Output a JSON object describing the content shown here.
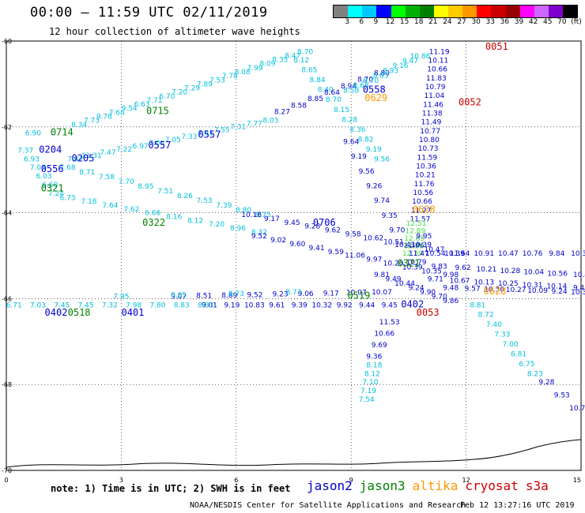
{
  "header": {
    "title": "00:00 – 11:59 UTC 02/11/2019",
    "subtitle": "12 hour collection of altimeter wave heights"
  },
  "colorbar": {
    "colors": [
      "#808080",
      "#00ffff",
      "#00c8ff",
      "#0000ff",
      "#00ff00",
      "#00b000",
      "#008000",
      "#ffff00",
      "#ffcc00",
      "#ff9900",
      "#ff0000",
      "#cc0000",
      "#990000",
      "#ff00ff",
      "#cc66ff",
      "#7f00cc",
      "#000000"
    ],
    "labels": [
      "3",
      "6",
      "9",
      "12",
      "15",
      "18",
      "21",
      "24",
      "27",
      "30",
      "33",
      "36",
      "39",
      "42",
      "45",
      "70",
      "(ft)"
    ]
  },
  "footer": {
    "note": "note: 1) Time is in UTC; 2) SWH is in feet",
    "credit": "NOAA/NESDIS Center for Satellite Applications and Research",
    "timestamp": "Feb 12 13:27:16 UTC 2019"
  },
  "legend": [
    {
      "name": "jason2",
      "color": "#0000cc"
    },
    {
      "name": "jason3",
      "color": "#008000"
    },
    {
      "name": "altika",
      "color": "#ff9900"
    },
    {
      "name": "cryosat",
      "color": "#cc0000"
    },
    {
      "name": "s3a",
      "color": "#cc0000"
    }
  ],
  "chart_data": {
    "type": "scatter",
    "x_ticks": [
      "0",
      "3",
      "6",
      "9",
      "12",
      "15"
    ],
    "y_ticks": [
      "60",
      "62",
      "64",
      "66",
      "68",
      "70"
    ],
    "xlim": [
      0,
      15
    ],
    "ylim": [
      -70,
      -60
    ],
    "grid": true,
    "legend_placement": "bottom",
    "colors": {
      "cyan": "#00bfdd",
      "blue": "#0000cc",
      "green": "#008000",
      "orange": "#ff9900",
      "red": "#cc0000",
      "yellow": "#e6e600",
      "lightgreen": "#44dd44"
    },
    "track_labels": [
      {
        "t": "0051",
        "x": 12.8,
        "y": -60.2,
        "c": "red"
      },
      {
        "t": "0052",
        "x": 12.1,
        "y": -61.5,
        "c": "red"
      },
      {
        "t": "0053",
        "x": 11.0,
        "y": -66.4,
        "c": "red"
      },
      {
        "t": "0558",
        "x": 9.6,
        "y": -61.2,
        "c": "blue"
      },
      {
        "t": "0629",
        "x": 9.65,
        "y": -61.4,
        "c": "orange"
      },
      {
        "t": "0628",
        "x": 10.9,
        "y": -64.0,
        "c": "orange"
      },
      {
        "t": "0628",
        "x": 12.75,
        "y": -65.9,
        "c": "orange"
      },
      {
        "t": "0715",
        "x": 3.95,
        "y": -61.7,
        "c": "green"
      },
      {
        "t": "0714",
        "x": 1.45,
        "y": -62.2,
        "c": "green"
      },
      {
        "t": "0557",
        "x": 4.0,
        "y": -62.5,
        "c": "blue"
      },
      {
        "t": "0557",
        "x": 5.3,
        "y": -62.25,
        "c": "blue"
      },
      {
        "t": "0204",
        "x": 1.15,
        "y": -62.6,
        "c": "blue"
      },
      {
        "t": "0205",
        "x": 2.0,
        "y": -62.8,
        "c": "blue"
      },
      {
        "t": "0556",
        "x": 1.2,
        "y": -63.05,
        "c": "blue"
      },
      {
        "t": "0321",
        "x": 1.2,
        "y": -63.5,
        "c": "green"
      },
      {
        "t": "0322",
        "x": 3.85,
        "y": -64.3,
        "c": "green"
      },
      {
        "t": "0706",
        "x": 8.3,
        "y": -64.3,
        "c": "blue"
      },
      {
        "t": "0321",
        "x": 10.5,
        "y": -65.25,
        "c": "green"
      },
      {
        "t": "0519",
        "x": 9.2,
        "y": -66.0,
        "c": "green"
      },
      {
        "t": "0402",
        "x": 10.6,
        "y": -66.2,
        "c": "blue"
      },
      {
        "t": "0401",
        "x": 3.3,
        "y": -66.4,
        "c": "blue"
      },
      {
        "t": "0518",
        "x": 1.9,
        "y": -66.4,
        "c": "green"
      },
      {
        "t": "0402",
        "x": 1.3,
        "y": -66.4,
        "c": "blue"
      }
    ],
    "tracks": [
      {
        "name": "arc-upper",
        "c": "cyan",
        "x0": 1.9,
        "y0": -62.0,
        "x1": 7.8,
        "y1": -60.3,
        "values": [
          "8.34",
          "7.73",
          "9.78",
          "7.68",
          "9.54",
          "6.63",
          "7.71",
          "6.70",
          "7.20",
          "7.29",
          "7.89",
          "7.53",
          "7.78",
          "8.08",
          "7.99",
          "8.09",
          "8.35",
          "8.47",
          "8.70"
        ]
      },
      {
        "name": "left-edge-cyan",
        "c": "cyan",
        "x0": 0.7,
        "y0": -62.2,
        "x1": 1.0,
        "y1": -62.2,
        "values": [
          "6.90"
        ]
      },
      {
        "name": "mid-cyan-1",
        "c": "cyan",
        "x0": 1.8,
        "y0": -62.8,
        "x1": 6.9,
        "y1": -61.9,
        "values": [
          "7.42",
          "11.31",
          "7.47",
          "7.22",
          "6.97",
          "7.00",
          "7.05",
          "7.33",
          "7.31",
          "7.55",
          "7.31",
          "7.77",
          "8.03"
        ]
      },
      {
        "name": "desc-right",
        "c": "cyan",
        "x0": 7.7,
        "y0": -60.5,
        "x1": 9.8,
        "y1": -62.8,
        "values": [
          "8.12",
          "8.65",
          "8.84",
          "8.40",
          "8.70",
          "8.15",
          "8.28",
          "8.36",
          "8.82",
          "9.19",
          "9.56"
        ]
      },
      {
        "name": "mid-blue-1",
        "c": "blue",
        "x0": 7.2,
        "y0": -61.7,
        "x1": 9.8,
        "y1": -60.8,
        "values": [
          "8.27",
          "8.58",
          "8.85",
          "8.64",
          "8.94",
          "8.70",
          "8.80"
        ]
      },
      {
        "name": "cyan-arc-2",
        "c": "cyan",
        "x0": 9.0,
        "y0": -61.2,
        "x1": 10.8,
        "y1": -60.4,
        "values": [
          "8.58",
          "8.68",
          "8.70",
          "8.83",
          "8.93",
          "9.16",
          "9.47",
          "10.86"
        ]
      },
      {
        "name": "blue-desc-1",
        "c": "blue",
        "x0": 9.0,
        "y0": -62.4,
        "x1": 10.4,
        "y1": -64.8,
        "values": [
          "9.64",
          "9.19",
          "9.56",
          "9.26",
          "9.74",
          "9.35",
          "9.70",
          "10.43"
        ]
      },
      {
        "name": "blue-cryosat-col",
        "c": "blue",
        "x0": 11.3,
        "y0": -60.3,
        "x1": 10.8,
        "y1": -64.2,
        "values": [
          "11.19",
          "10.11",
          "10.66",
          "11.83",
          "10.79",
          "11.04",
          "11.46",
          "11.38",
          "11.49",
          "10.77",
          "10.80",
          "10.73",
          "11.59",
          "10.36",
          "10.21",
          "11.76",
          "10.56",
          "10.66",
          "11.27",
          "11.57"
        ]
      },
      {
        "name": "cyan-left-col",
        "c": "cyan",
        "x0": 0.5,
        "y0": -62.6,
        "x1": 1.3,
        "y1": -63.6,
        "values": [
          "7.37",
          "6.93",
          "7.03",
          "6.03",
          "6.60",
          "7.24"
        ]
      },
      {
        "name": "cyan-band-3",
        "c": "cyan",
        "x0": 1.6,
        "y0": -63.0,
        "x1": 6.7,
        "y1": -64.1,
        "values": [
          "7.68",
          "8.71",
          "7.58",
          "7.70",
          "8.95",
          "7.51",
          "8.26",
          "7.53",
          "7.39",
          "8.80",
          "8.75"
        ]
      },
      {
        "name": "cyan-band-4",
        "c": "cyan",
        "x0": 1.6,
        "y0": -63.7,
        "x1": 6.6,
        "y1": -64.5,
        "values": [
          "6.73",
          "7.18",
          "7.64",
          "7.62",
          "6.66",
          "8.16",
          "8.12",
          "7.20",
          "8.96",
          "8.32"
        ]
      },
      {
        "name": "blue-band-4",
        "c": "blue",
        "x0": 6.4,
        "y0": -64.1,
        "x1": 11.7,
        "y1": -65.0,
        "values": [
          "10.18",
          "9.17",
          "9.45",
          "9.28",
          "9.62",
          "9.58",
          "10.62",
          "10.51",
          "11.06",
          "10.47",
          "10.39"
        ]
      },
      {
        "name": "blue-band-5",
        "c": "blue",
        "x0": 6.6,
        "y0": -64.6,
        "x1": 11.6,
        "y1": -65.5,
        "values": [
          "9.52",
          "9.02",
          "9.60",
          "9.41",
          "9.59",
          "11.06",
          "9.97",
          "10.20",
          "10.39",
          "10.35",
          "9.98"
        ]
      },
      {
        "name": "blue-band-6",
        "c": "blue",
        "x0": 11.2,
        "y0": -65.0,
        "x1": 15.0,
        "y1": -65.0,
        "values": [
          "10.54",
          "11.64",
          "10.91",
          "10.47",
          "10.76",
          "9.84",
          "10.37"
        ]
      },
      {
        "name": "blue-band-7",
        "c": "blue",
        "x0": 11.3,
        "y0": -65.3,
        "x1": 15.0,
        "y1": -65.5,
        "values": [
          "9.83",
          "9.62",
          "10.21",
          "10.28",
          "10.04",
          "10.56",
          "10.4"
        ]
      },
      {
        "name": "blue-band-8",
        "c": "blue",
        "x0": 11.2,
        "y0": -65.6,
        "x1": 15.0,
        "y1": -65.8,
        "values": [
          "9.71",
          "10.67",
          "10.13",
          "10.25",
          "10.31",
          "10.14",
          "9.48"
        ]
      },
      {
        "name": "blue-band-9",
        "c": "blue",
        "x0": 11.6,
        "y0": -65.8,
        "x1": 15.0,
        "y1": -65.9,
        "values": [
          "9.48",
          "9.57",
          "10.30",
          "10.27",
          "10.09",
          "9.24",
          "10.36"
        ]
      },
      {
        "name": "lightgreen-col",
        "c": "lightgreen",
        "x0": 10.7,
        "y0": -64.3,
        "x1": 10.6,
        "y1": -65.0,
        "values": [
          "12.51",
          "12.89",
          "12.63",
          "12.39",
          "12.39"
        ]
      },
      {
        "name": "blue-cross-col",
        "c": "blue",
        "x0": 10.9,
        "y0": -64.6,
        "x1": 10.7,
        "y1": -65.2,
        "values": [
          "9.95",
          "10.39",
          "11.47",
          "10.79"
        ]
      },
      {
        "name": "blue-center-bottom",
        "c": "blue",
        "x0": 9.8,
        "y0": -65.5,
        "x1": 11.6,
        "y1": -66.1,
        "values": [
          "9.81",
          "9.49",
          "10.44",
          "9.24",
          "9.90",
          "9.70",
          "9.86"
        ]
      },
      {
        "name": "blue-lower-band",
        "c": "blue",
        "x0": 4.5,
        "y0": -66.0,
        "x1": 9.8,
        "y1": -65.9,
        "values": [
          "9.07",
          "8.51",
          "8.89",
          "9.52",
          "9.23",
          "9.06",
          "9.17",
          "10.07",
          "10.07"
        ]
      },
      {
        "name": "cyan-lower-band",
        "c": "cyan",
        "x0": 3.0,
        "y0": -66.0,
        "x1": 7.5,
        "y1": -65.9,
        "values": [
          "7.95",
          "8.05",
          "8.73",
          "8.73"
        ]
      },
      {
        "name": "blue-bottom-band",
        "c": "blue",
        "x0": 5.3,
        "y0": -66.2,
        "x1": 10.0,
        "y1": -66.2,
        "values": [
          "9.01",
          "9.19",
          "10.83",
          "9.61",
          "9.39",
          "10.32",
          "9.92",
          "9.44",
          "9.45"
        ]
      },
      {
        "name": "cyan-bottom-left",
        "c": "cyan",
        "x0": 0.2,
        "y0": -66.2,
        "x1": 5.2,
        "y1": -66.2,
        "values": [
          "6.71",
          "7.03",
          "7.45",
          "7.45",
          "7.32",
          "7.98",
          "7.80",
          "8.83",
          "8.83"
        ]
      },
      {
        "name": "blue-final-col",
        "c": "blue",
        "x0": 10.0,
        "y0": -66.6,
        "x1": 9.6,
        "y1": -67.4,
        "values": [
          "11.53",
          "10.66",
          "9.69",
          "9.36"
        ]
      },
      {
        "name": "cyan-final-col",
        "c": "cyan",
        "x0": 9.6,
        "y0": -67.6,
        "x1": 9.4,
        "y1": -68.4,
        "values": [
          "8.18",
          "8.12",
          "7.10",
          "7.19",
          "7.54"
        ]
      },
      {
        "name": "cyan-right-diag",
        "c": "cyan",
        "x0": 12.3,
        "y0": -66.2,
        "x1": 13.8,
        "y1": -67.8,
        "values": [
          "8.81",
          "8.72",
          "7.40",
          "7.33",
          "7.00",
          "6.81",
          "6.75",
          "8.23"
        ]
      },
      {
        "name": "blue-right-diag",
        "c": "blue",
        "x0": 14.1,
        "y0": -68.0,
        "x1": 14.9,
        "y1": -68.6,
        "values": [
          "9.28",
          "9.53",
          "10.7"
        ]
      }
    ]
  }
}
